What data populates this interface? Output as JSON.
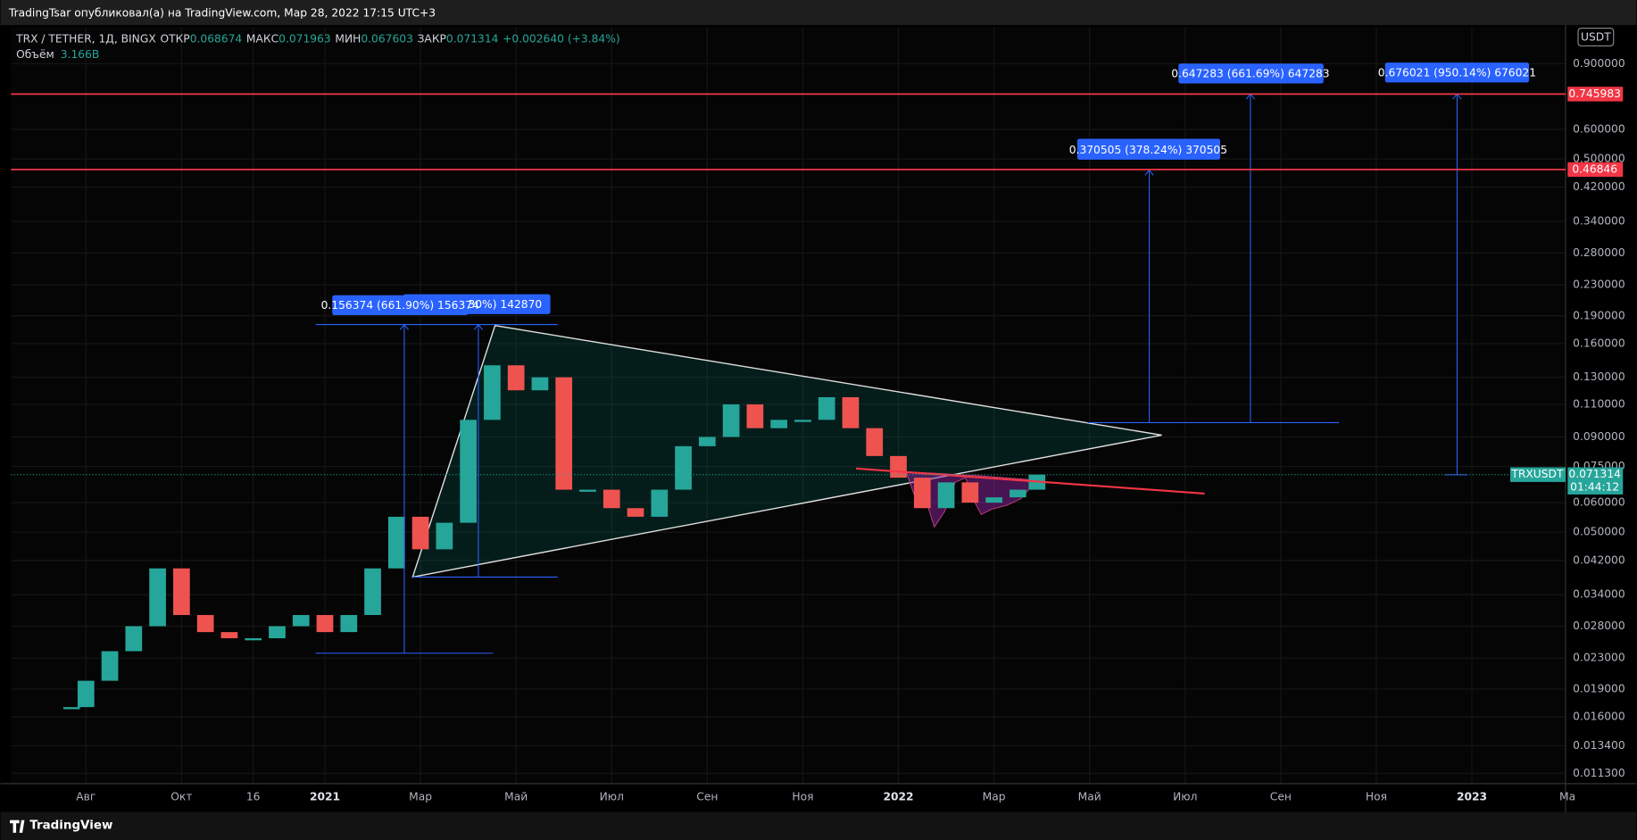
{
  "header": {
    "published": "TradingTsar опубликовал(а) на TradingView.com, Мар 28, 2022 17:15 UTC+3"
  },
  "legend": {
    "symbol": "TRX / TETHER, 1Д, BINGX",
    "open_label": "ОТКР",
    "open": "0.068674",
    "high_label": "МАКС",
    "high": "0.071963",
    "low_label": "МИН",
    "low": "0.067603",
    "close_label": "ЗАКР",
    "close": "0.071314",
    "change": "+0.002640 (+3.84%)",
    "volume_label": "Объём",
    "volume": "3.166B"
  },
  "currency": "USDT",
  "measurements": [
    "3.30%) 142870",
    "0.156374 (661.90%) 156374",
    "0.370505 (378.24%) 370505",
    "0.647283 (661.69%) 647283",
    "0.676021 (950.14%) 676021"
  ],
  "footer": "TradingView",
  "chart_data": {
    "type": "candlestick",
    "log_scale": true,
    "x": [
      -0.3,
      0,
      0.5,
      1,
      1.5,
      2,
      2.5,
      3,
      3.5,
      4,
      4.5,
      5,
      5.5,
      6,
      6.5,
      7,
      7.5,
      8,
      8.5,
      9,
      9.5,
      10,
      10.5,
      11,
      11.5,
      12,
      12.5,
      13,
      13.5,
      14,
      14.5,
      15,
      15.5,
      16,
      16.5,
      17,
      17.5,
      18,
      18.5,
      19,
      19.5,
      19.9
    ],
    "values": [
      0.017,
      0.02,
      0.024,
      0.028,
      0.04,
      0.03,
      0.027,
      0.026,
      0.026,
      0.028,
      0.03,
      0.027,
      0.03,
      0.04,
      0.055,
      0.045,
      0.053,
      0.1,
      0.14,
      0.12,
      0.13,
      0.065,
      0.065,
      0.058,
      0.055,
      0.065,
      0.085,
      0.09,
      0.11,
      0.095,
      0.1,
      0.1,
      0.115,
      0.095,
      0.08,
      0.07,
      0.058,
      0.068,
      0.06,
      0.062,
      0.065,
      0.071314
    ],
    "up_color": "#26a69a",
    "down_color": "#ef5350",
    "ylim": [
      0.01067,
      1.113
    ],
    "xlim": [
      -1.57,
      30.96
    ],
    "yticks": [
      {
        "value": 0.9,
        "label": "0.900000"
      },
      {
        "value": 0.6,
        "label": "0.600000"
      },
      {
        "value": 0.5,
        "label": "0.500000"
      },
      {
        "value": 0.42,
        "label": "0.420000"
      },
      {
        "value": 0.34,
        "label": "0.340000"
      },
      {
        "value": 0.28,
        "label": "0.280000"
      },
      {
        "value": 0.23,
        "label": "0.230000"
      },
      {
        "value": 0.19,
        "label": "0.190000"
      },
      {
        "value": 0.16,
        "label": "0.160000"
      },
      {
        "value": 0.13,
        "label": "0.130000"
      },
      {
        "value": 0.11,
        "label": "0.110000"
      },
      {
        "value": 0.09,
        "label": "0.090000"
      },
      {
        "value": 0.075,
        "label": "0.075000"
      },
      {
        "value": 0.06,
        "label": "0.060000"
      },
      {
        "value": 0.05,
        "label": "0.050000"
      },
      {
        "value": 0.042,
        "label": "0.042000"
      },
      {
        "value": 0.034,
        "label": "0.034000"
      },
      {
        "value": 0.028,
        "label": "0.028000"
      },
      {
        "value": 0.023,
        "label": "0.023000"
      },
      {
        "value": 0.019,
        "label": "0.019000"
      },
      {
        "value": 0.016,
        "label": "0.016000"
      },
      {
        "value": 0.0134,
        "label": "0.013400"
      },
      {
        "value": 0.0113,
        "label": "0.011300"
      }
    ],
    "xticks": [
      {
        "value": 0,
        "label": "Авг"
      },
      {
        "value": 2,
        "label": "Окт"
      },
      {
        "value": 3.5,
        "label": "16"
      },
      {
        "value": 5,
        "label": "2021"
      },
      {
        "value": 7,
        "label": "Мар"
      },
      {
        "value": 9,
        "label": "Май"
      },
      {
        "value": 11,
        "label": "Июл"
      },
      {
        "value": 13,
        "label": "Сен"
      },
      {
        "value": 15,
        "label": "Ноя"
      },
      {
        "value": 17,
        "label": "2022"
      },
      {
        "value": 19,
        "label": "Мар"
      },
      {
        "value": 21,
        "label": "Май"
      },
      {
        "value": 23,
        "label": "Июл"
      },
      {
        "value": 25,
        "label": "Сен"
      },
      {
        "value": 27,
        "label": "Ноя"
      },
      {
        "value": 29,
        "label": "2023"
      },
      {
        "value": 31,
        "label": "Ма"
      }
    ],
    "levels": [
      0.745983,
      0.46846
    ],
    "level_color": "#f23645",
    "last_price": {
      "value": 0.071314,
      "symbol": "TRXUSDT",
      "countdown": "01:44:12"
    }
  }
}
